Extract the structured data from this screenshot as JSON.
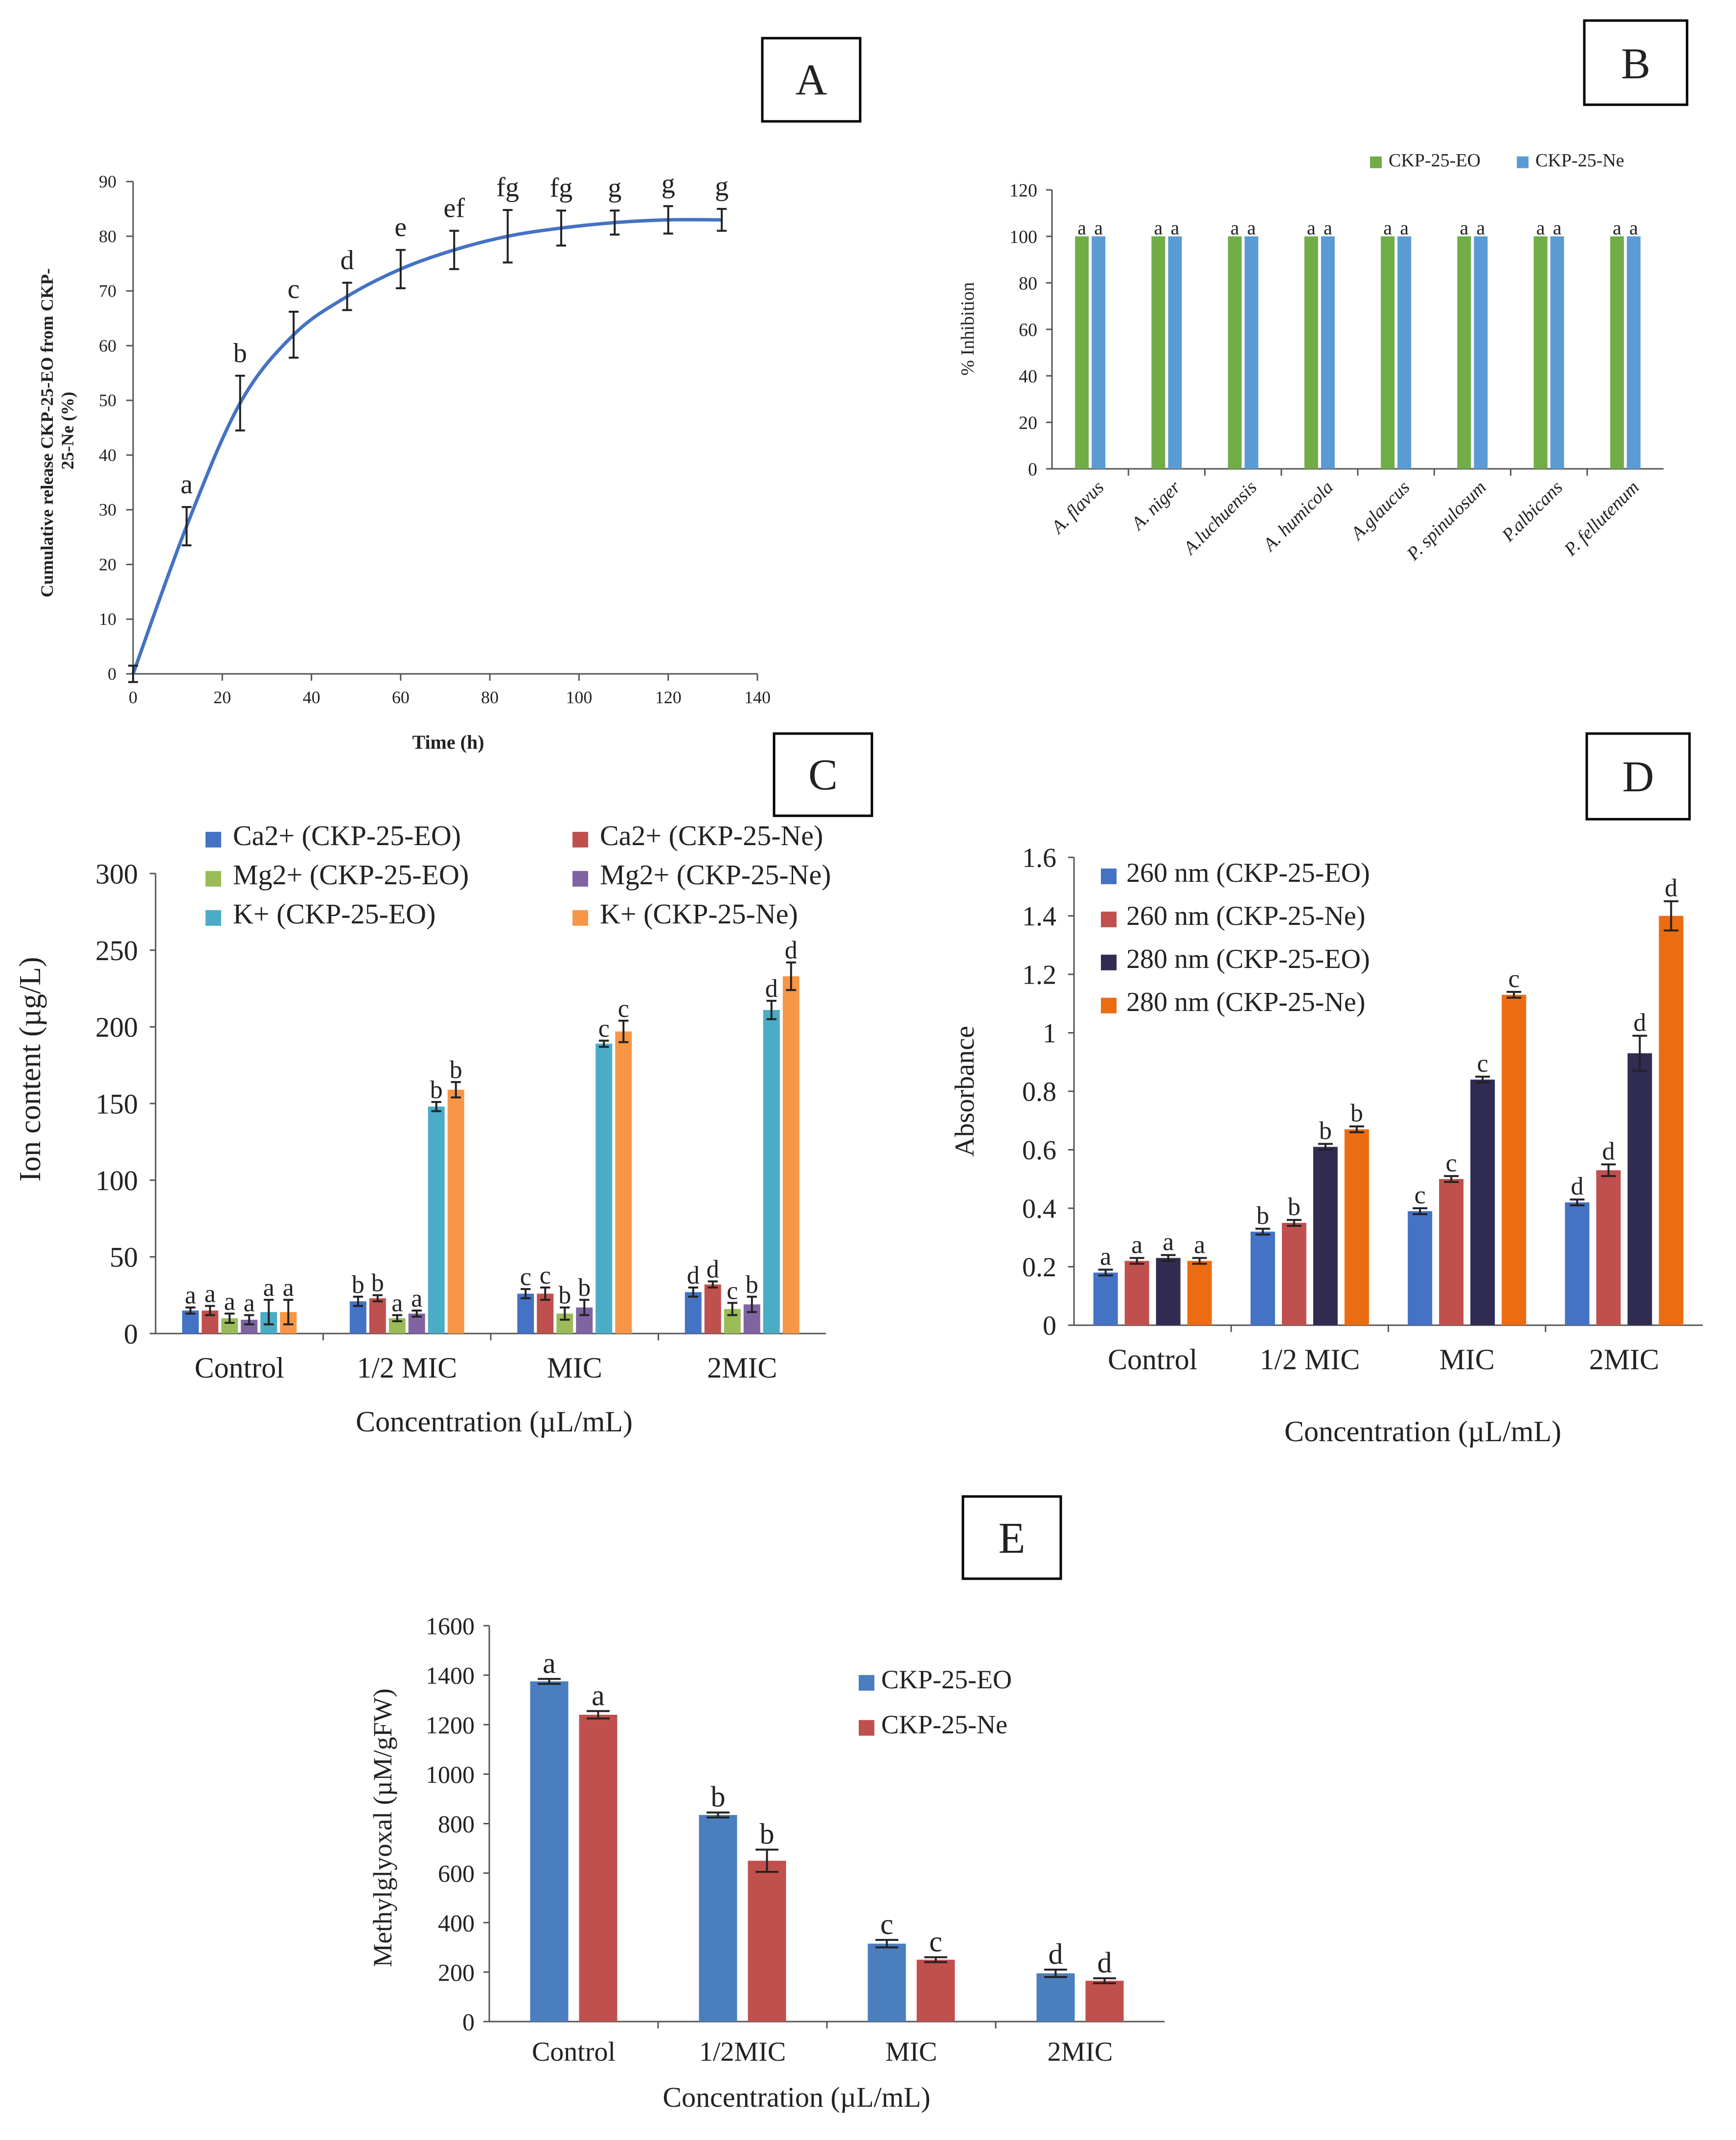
{
  "chart_data": [
    {
      "panel": "A",
      "type": "line",
      "title": "",
      "xlabel": "Time (h)",
      "ylabel": "Cumulative release CKP-25-EO from CKP-25-Ne (%)",
      "ylabel_lines": [
        "Cumulative release CKP-25-EO from CKP-",
        "25-Ne (%)"
      ],
      "xlim": [
        0,
        140
      ],
      "ylim": [
        0,
        90
      ],
      "xticks": [
        "0",
        "20",
        "40",
        "60",
        "80",
        "100",
        "120",
        "140"
      ],
      "yticks": [
        "0",
        "10",
        "20",
        "30",
        "40",
        "50",
        "60",
        "70",
        "80",
        "90"
      ],
      "x": [
        0,
        12,
        24,
        36,
        48,
        60,
        72,
        84,
        96,
        108,
        120,
        132
      ],
      "y": [
        0,
        27,
        49.5,
        62,
        69,
        74,
        77.5,
        80,
        81.5,
        82.5,
        83,
        83
      ],
      "errors": [
        1.5,
        3.5,
        5,
        4.2,
        2.5,
        3.5,
        3.5,
        4.8,
        3.2,
        2.2,
        2.5,
        2
      ],
      "letters": [
        "",
        "a",
        "b",
        "c",
        "d",
        "e",
        "ef",
        "fg",
        "fg",
        "g",
        "g",
        "g"
      ],
      "color": "#4472c4"
    },
    {
      "panel": "B",
      "type": "bar",
      "title": "",
      "xlabel": "",
      "ylabel": "% Inhibition",
      "ylim": [
        0,
        120
      ],
      "yticks": [
        "0",
        "20",
        "40",
        "60",
        "80",
        "100",
        "120"
      ],
      "categories": [
        "A. flavus",
        "A. niger",
        "A.luchuensis",
        "A. humicola",
        "A.glaucus",
        "P. spinulosum",
        "P.albicans",
        "P. fellutenum"
      ],
      "series": [
        {
          "name": "CKP-25-EO",
          "color": "#70ad47",
          "values": [
            100,
            100,
            100,
            100,
            100,
            100,
            100,
            100
          ],
          "letters": [
            "a",
            "a",
            "a",
            "a",
            "a",
            "a",
            "a",
            "a"
          ]
        },
        {
          "name": "CKP-25-Ne",
          "color": "#5b9bd5",
          "values": [
            100,
            100,
            100,
            100,
            100,
            100,
            100,
            100
          ],
          "letters": [
            "a",
            "a",
            "a",
            "a",
            "a",
            "a",
            "a",
            "a"
          ]
        }
      ],
      "legend": "top"
    },
    {
      "panel": "C",
      "type": "bar",
      "title": "",
      "xlabel": "Concentration (µL/mL)",
      "ylabel": "Ion content (µg/L)",
      "ylim": [
        0,
        300
      ],
      "yticks": [
        "0",
        "50",
        "100",
        "150",
        "200",
        "250",
        "300"
      ],
      "categories": [
        "Control",
        "1/2 MIC",
        "MIC",
        "2MIC"
      ],
      "series": [
        {
          "name": "Ca2+ (CKP-25-EO)",
          "color": "#4472c4",
          "values": [
            15,
            21,
            26,
            27
          ],
          "errors": [
            2,
            3,
            3,
            3
          ],
          "letters": [
            "a",
            "b",
            "c",
            "d"
          ]
        },
        {
          "name": "Ca2+ (CKP-25-Ne)",
          "color": "#c0504d",
          "values": [
            15,
            23,
            26,
            32
          ],
          "errors": [
            3,
            2,
            4,
            2
          ],
          "letters": [
            "a",
            "b",
            "c",
            "d"
          ]
        },
        {
          "name": "Mg2+ (CKP-25-EO)",
          "color": "#9bbb59",
          "values": [
            10,
            10,
            13,
            16
          ],
          "errors": [
            3,
            2,
            4,
            4
          ],
          "letters": [
            "a",
            "a",
            "b",
            "c"
          ]
        },
        {
          "name": "Mg2+ (CKP-25-Ne)",
          "color": "#8064a2",
          "values": [
            9,
            13,
            17,
            19
          ],
          "errors": [
            3,
            2,
            5,
            5
          ],
          "letters": [
            "a",
            "a",
            "b",
            "b"
          ]
        },
        {
          "name": "K+ (CKP-25-EO)",
          "color": "#4bacc6",
          "values": [
            14,
            148,
            189,
            211
          ],
          "errors": [
            8,
            3,
            2,
            6
          ],
          "letters": [
            "a",
            "b",
            "c",
            "d"
          ]
        },
        {
          "name": "K+ (CKP-25-Ne)",
          "color": "#f79646",
          "values": [
            14,
            159,
            197,
            233
          ],
          "errors": [
            8,
            5,
            7,
            9
          ],
          "letters": [
            "a",
            "b",
            "c",
            "d"
          ]
        }
      ],
      "legend": "top"
    },
    {
      "panel": "D",
      "type": "bar",
      "title": "",
      "xlabel": "Concentration (µL/mL)",
      "ylabel": "Absorbance",
      "ylim": [
        0,
        1.6
      ],
      "yticks": [
        "0",
        "0.2",
        "0.4",
        "0.6",
        "0.8",
        "1",
        "1.2",
        "1.4",
        "1.6"
      ],
      "categories": [
        "Control",
        "1/2 MIC",
        "MIC",
        "2MIC"
      ],
      "series": [
        {
          "name": "260 nm (CKP-25-EO)",
          "color": "#4472c4",
          "values": [
            0.18,
            0.32,
            0.39,
            0.42
          ],
          "errors": [
            0.01,
            0.01,
            0.01,
            0.01
          ],
          "letters": [
            "a",
            "b",
            "c",
            "d"
          ]
        },
        {
          "name": "260 nm (CKP-25-Ne)",
          "color": "#c0504d",
          "values": [
            0.22,
            0.35,
            0.5,
            0.53
          ],
          "errors": [
            0.01,
            0.01,
            0.01,
            0.02
          ],
          "letters": [
            "a",
            "b",
            "c",
            "d"
          ]
        },
        {
          "name": "280 nm (CKP-25-EO)",
          "color": "#302c52",
          "values": [
            0.23,
            0.61,
            0.84,
            0.93
          ],
          "errors": [
            0.01,
            0.01,
            0.01,
            0.06
          ],
          "letters": [
            "a",
            "b",
            "c",
            "d"
          ]
        },
        {
          "name": "280 nm (CKP-25-Ne)",
          "color": "#ec6c12",
          "values": [
            0.22,
            0.67,
            1.13,
            1.4
          ],
          "errors": [
            0.01,
            0.01,
            0.01,
            0.05
          ],
          "letters": [
            "a",
            "b",
            "c",
            "d"
          ]
        }
      ],
      "legend": "top-left"
    },
    {
      "panel": "E",
      "type": "bar",
      "title": "",
      "xlabel": "Concentration (µL/mL)",
      "ylabel": "Methylglyoxal (µM/gFW)",
      "ylim": [
        0,
        1600
      ],
      "yticks": [
        "0",
        "200",
        "400",
        "600",
        "800",
        "1000",
        "1200",
        "1400",
        "1600"
      ],
      "categories": [
        "Control",
        "1/2MIC",
        "MIC",
        "2MIC"
      ],
      "series": [
        {
          "name": "CKP-25-EO",
          "color": "#4a7ebf",
          "values": [
            1375,
            835,
            315,
            195
          ],
          "errors": [
            10,
            10,
            15,
            15
          ],
          "letters": [
            "a",
            "b",
            "c",
            "d"
          ]
        },
        {
          "name": "CKP-25-Ne",
          "color": "#c0504d",
          "values": [
            1240,
            650,
            250,
            165
          ],
          "errors": [
            15,
            45,
            10,
            10
          ],
          "letters": [
            "a",
            "b",
            "c",
            "d"
          ]
        }
      ],
      "legend": "right"
    }
  ],
  "panels": {
    "a": {
      "label": "A",
      "title": "",
      "xlabel": "Time (h)",
      "ylabel": [
        "Cumulative release CKP-25-EO from CKP-",
        "25-Ne (%)"
      ]
    },
    "b": {
      "label": "B",
      "ylabel": "% Inhibition"
    },
    "c": {
      "label": "C",
      "xlabel": "Concentration (µL/mL)",
      "ylabel": "Ion content (µg/L)"
    },
    "d": {
      "label": "D",
      "xlabel": "Concentration (µL/mL)",
      "ylabel": "Absorbance"
    },
    "e": {
      "label": "E",
      "xlabel": "Concentration (µL/mL)",
      "ylabel": "Methylglyoxal (µM/gFW)"
    }
  }
}
